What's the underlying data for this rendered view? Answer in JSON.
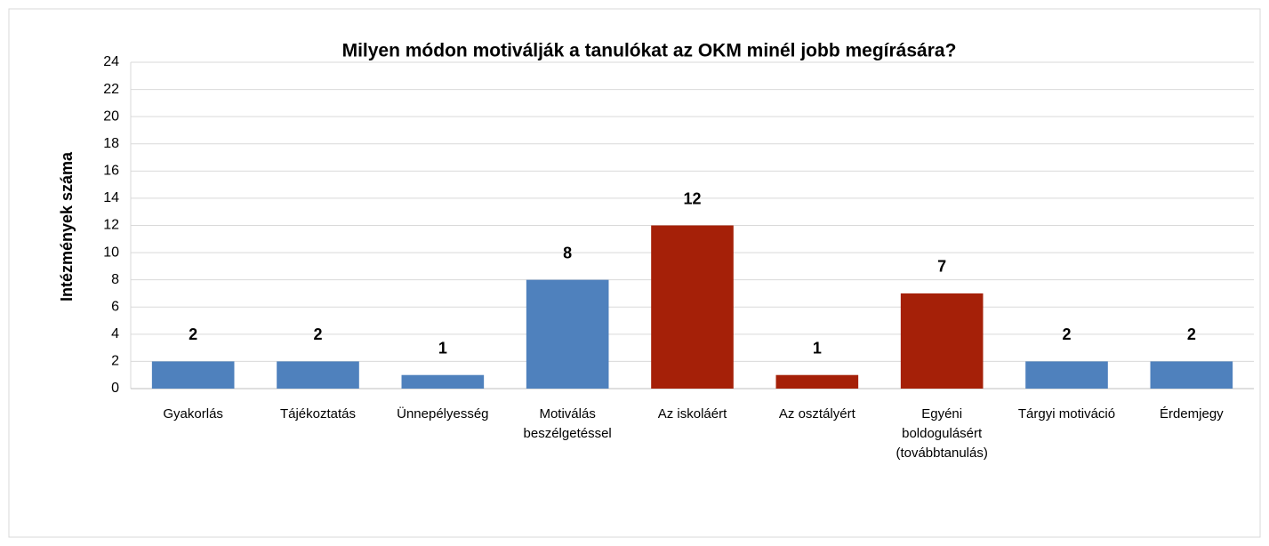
{
  "chart_data": {
    "type": "bar",
    "title": "Milyen módon motiválják a tanulókat az OKM minél jobb megírására?",
    "y_label": "Intézmények száma",
    "categories": [
      "Gyakorlás",
      "Tájékoztatás",
      "Ünnepélyesség",
      "Motiválás beszélgetéssel",
      "Az iskoláért",
      "Az osztályért",
      "Egyéni boldogulásért (továbbtanulás)",
      "Tárgyi motiváció",
      "Érdemjegy"
    ],
    "values": [
      2,
      2,
      1,
      8,
      12,
      1,
      7,
      2,
      2
    ],
    "colors": [
      "#4f81bd",
      "#4f81bd",
      "#4f81bd",
      "#4f81bd",
      "#a52008",
      "#a52008",
      "#a52008",
      "#4f81bd",
      "#4f81bd"
    ],
    "ylim": [
      0,
      24
    ],
    "yticks": [
      0,
      2,
      4,
      6,
      8,
      10,
      12,
      14,
      16,
      18,
      20,
      22,
      24
    ],
    "grid": true
  }
}
